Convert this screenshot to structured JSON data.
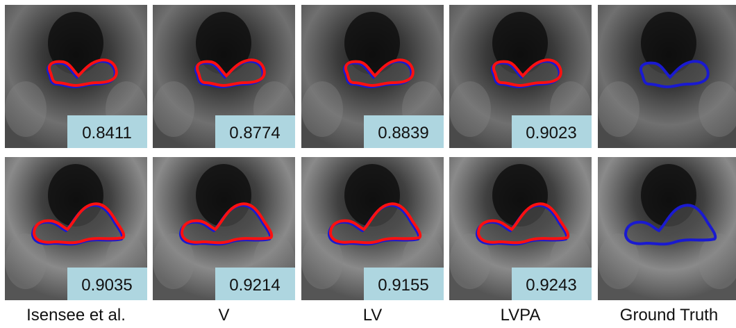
{
  "columns": [
    "Isensee et al.",
    "V",
    "LV",
    "LVPA",
    "Ground Truth"
  ],
  "rows": [
    [
      0.8411,
      0.8774,
      0.8839,
      0.9023
    ],
    [
      0.9035,
      0.9214,
      0.9155,
      0.9243
    ]
  ]
}
